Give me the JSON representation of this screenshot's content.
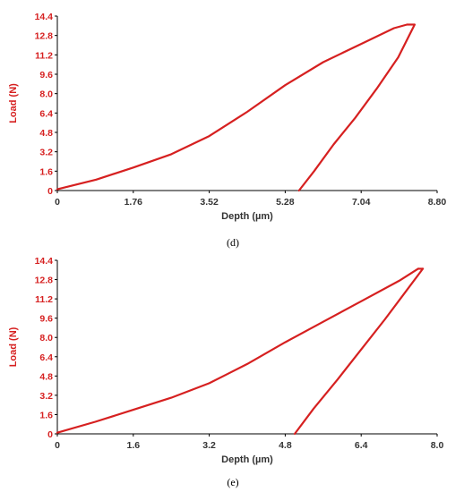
{
  "colors": {
    "curve": "#d62020",
    "y_tick": "#d62020",
    "x_tick": "#333333",
    "axis": "#000000"
  },
  "chart_data": [
    {
      "type": "line",
      "caption": "(d)",
      "xlabel": "Depth (µm)",
      "ylabel": "Load (N)",
      "xlim": [
        0,
        8.8
      ],
      "ylim": [
        0,
        14.4
      ],
      "x_ticks": [
        "0",
        "1.76",
        "3.52",
        "5.28",
        "7.04",
        "8.80"
      ],
      "y_ticks": [
        "0",
        "1.6",
        "3.2",
        "4.8",
        "6.4",
        "8.0",
        "9.6",
        "11.2",
        "12.8",
        "14.4"
      ],
      "series": [
        {
          "part": "loading",
          "x": [
            0,
            0.9,
            1.76,
            2.64,
            3.52,
            4.4,
            5.28,
            6.16,
            7.04,
            7.8,
            8.1
          ],
          "y": [
            0.1,
            0.9,
            1.9,
            3.0,
            4.5,
            6.5,
            8.7,
            10.6,
            12.1,
            13.4,
            13.7
          ]
        },
        {
          "part": "unloading",
          "x": [
            5.6,
            5.95,
            6.4,
            6.9,
            7.4,
            7.9,
            8.28
          ],
          "y": [
            0,
            1.6,
            3.8,
            6.0,
            8.4,
            11.0,
            13.7
          ]
        }
      ]
    },
    {
      "type": "line",
      "caption": "(e)",
      "xlabel": "Depth (µm)",
      "ylabel": "Load (N)",
      "xlim": [
        0,
        8.0
      ],
      "ylim": [
        0,
        14.4
      ],
      "x_ticks": [
        "0",
        "1.6",
        "3.2",
        "4.8",
        "6.4",
        "8.0"
      ],
      "y_ticks": [
        "0",
        "1.6",
        "3.2",
        "4.8",
        "6.4",
        "8.0",
        "9.6",
        "11.2",
        "12.8",
        "14.4"
      ],
      "series": [
        {
          "part": "loading",
          "x": [
            0,
            0.8,
            1.6,
            2.4,
            3.2,
            4.0,
            4.8,
            5.6,
            6.4,
            7.2,
            7.6
          ],
          "y": [
            0.1,
            1.0,
            2.0,
            3.0,
            4.2,
            5.8,
            7.6,
            9.3,
            11.0,
            12.7,
            13.7
          ]
        },
        {
          "part": "unloading",
          "x": [
            5.0,
            5.4,
            5.9,
            6.4,
            6.9,
            7.3,
            7.7
          ],
          "y": [
            0,
            2.1,
            4.5,
            7.0,
            9.5,
            11.6,
            13.7
          ]
        }
      ]
    }
  ]
}
